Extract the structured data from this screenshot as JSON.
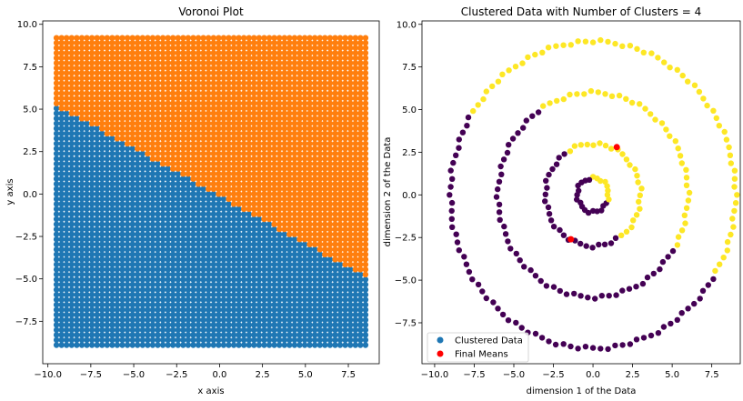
{
  "chart_data": [
    {
      "type": "scatter",
      "title": "Voronoi Plot",
      "xlabel": "x axis",
      "ylabel": "y axis",
      "xlim": [
        -10.3,
        9.3
      ],
      "ylim": [
        -10.0,
        10.2
      ],
      "x_ticks": [
        -10.0,
        -7.5,
        -5.0,
        -2.5,
        0.0,
        2.5,
        5.0,
        7.5
      ],
      "y_ticks": [
        -7.5,
        -5.0,
        -2.5,
        0.0,
        2.5,
        5.0,
        7.5,
        10.0
      ],
      "x_tick_labels": [
        "−10.0",
        "−7.5",
        "−5.0",
        "−2.5",
        "0.0",
        "2.5",
        "5.0",
        "7.5"
      ],
      "y_tick_labels": [
        "−7.5",
        "−5.0",
        "−2.5",
        "0.0",
        "2.5",
        "5.0",
        "7.5",
        "10.0"
      ],
      "grid": false,
      "series": [
        {
          "color": "#1f77b4",
          "region": "below boundary"
        },
        {
          "color": "#ff7f0e",
          "region": "above boundary"
        }
      ],
      "grid_points": {
        "x_range": [
          -9.5,
          8.5
        ],
        "y_range": [
          -8.9,
          9.2
        ]
      },
      "boundary_line": {
        "x": [
          -9.5,
          8.5
        ],
        "y": [
          5.2,
          -4.9
        ]
      }
    },
    {
      "type": "scatter",
      "title": "Clustered Data with Number of Clusters = 4",
      "xlabel": "dimension 1 of the Data",
      "ylabel": "dimension 2 of the Data",
      "xlim": [
        -10.8,
        9.3
      ],
      "ylim": [
        -9.9,
        10.2
      ],
      "x_ticks": [
        -10.0,
        -7.5,
        -5.0,
        -2.5,
        0.0,
        2.5,
        5.0,
        7.5
      ],
      "y_ticks": [
        -7.5,
        -5.0,
        -2.5,
        0.0,
        2.5,
        5.0,
        7.5,
        10.0
      ],
      "x_tick_labels": [
        "−10.0",
        "−7.5",
        "−5.0",
        "−2.5",
        "0.0",
        "2.5",
        "5.0",
        "7.5"
      ],
      "y_tick_labels": [
        "−7.5",
        "−5.0",
        "−2.5",
        "0.0",
        "2.5",
        "5.0",
        "7.5",
        "10.0"
      ],
      "grid": false,
      "rings": [
        {
          "radius": 1.0,
          "yellow_angles": [
            -20,
            95
          ]
        },
        {
          "radius": 3.0,
          "yellow_angles": [
            -60,
            120
          ]
        },
        {
          "radius": 6.0,
          "yellow_angles": [
            -30,
            122
          ]
        },
        {
          "radius": 9.0,
          "yellow_angles": [
            -30,
            147
          ]
        }
      ],
      "cluster_colors": {
        "purple": "#440154",
        "yellow": "#fde725"
      },
      "final_means": [
        {
          "x": 1.5,
          "y": 2.8
        },
        {
          "x": -1.4,
          "y": -2.6
        }
      ],
      "final_means_color": "#ff0000",
      "legend": {
        "position": "lower-left",
        "entries": [
          {
            "label": "Clustered Data",
            "color": "#1f77b4"
          },
          {
            "label": "Final Means",
            "color": "#ff0000"
          }
        ]
      }
    }
  ]
}
